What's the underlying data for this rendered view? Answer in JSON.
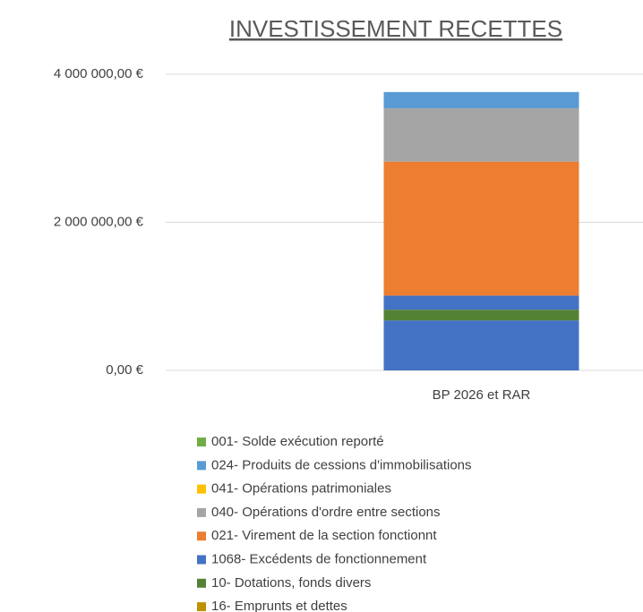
{
  "chart_data": {
    "type": "stacked_bar",
    "title": "INVESTISSEMENT RECETTES",
    "categories": [
      "BP 2026 et RAR"
    ],
    "series": [
      {
        "color": "#4472c4",
        "values": [
          675000
        ]
      },
      {
        "name": "16- Emprunts et dettes",
        "color": "#bf9000",
        "values": [
          0
        ]
      },
      {
        "name": "10- Dotations, fonds divers",
        "color": "#548235",
        "values": [
          145000
        ]
      },
      {
        "name": "1068- Excédents de fonctionnement",
        "color": "#4472c4",
        "values": [
          190000
        ]
      },
      {
        "name": "021- Virement de la section fonctionnt",
        "color": "#ed7d31",
        "values": [
          1810000
        ]
      },
      {
        "name": "040- Opérations d'ordre entre sections",
        "color": "#a5a5a5",
        "values": [
          720000
        ]
      },
      {
        "name": "041- Opérations patrimoniales",
        "color": "#ffc000",
        "values": [
          0
        ]
      },
      {
        "name": "024- Produits de cessions d'immobilisations",
        "color": "#5b9bd5",
        "values": [
          220000
        ]
      },
      {
        "name": "001- Solde exécution reporté",
        "color": "#70ad47",
        "values": [
          0
        ]
      }
    ],
    "ylim": [
      0,
      4000000
    ],
    "yticks": [
      {
        "value": 0,
        "label": "0,00 €"
      },
      {
        "value": 2000000,
        "label": "2 000 000,00 €"
      },
      {
        "value": 4000000,
        "label": "4 000 000,00 €"
      }
    ],
    "grid": true
  }
}
